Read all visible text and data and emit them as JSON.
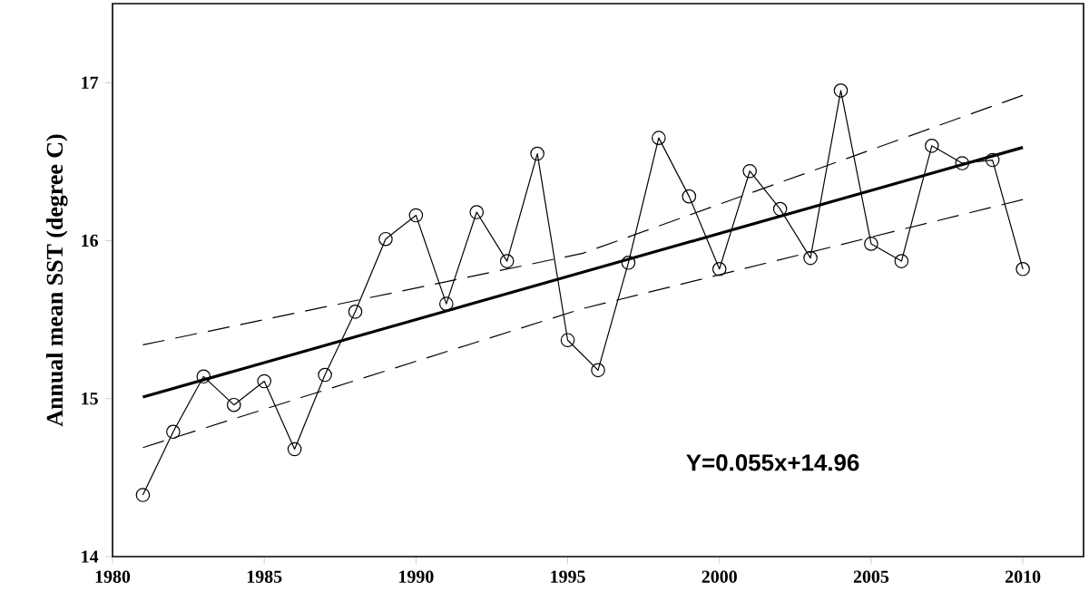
{
  "chart_data": {
    "type": "line",
    "ylabel": "Annual mean SST (degree C)",
    "xlim": [
      1980,
      2012
    ],
    "ylim": [
      14,
      17.5
    ],
    "xticks": [
      1980,
      1985,
      1990,
      1995,
      2000,
      2005,
      2010
    ],
    "yticks": [
      14,
      15,
      16,
      17
    ],
    "grid": false,
    "series": [
      {
        "color": "#000000",
        "marker": "circle",
        "line_style": "solid",
        "x": [
          1981,
          1982,
          1983,
          1984,
          1985,
          1986,
          1987,
          1988,
          1989,
          1990,
          1991,
          1992,
          1993,
          1994,
          1995,
          1996,
          1997,
          1998,
          1999,
          2000,
          2001,
          2002,
          2003,
          2004,
          2005,
          2006,
          2007,
          2008,
          2009,
          2010
        ],
        "values": [
          14.39,
          14.79,
          15.14,
          14.96,
          15.11,
          14.68,
          15.15,
          15.55,
          16.01,
          16.16,
          15.6,
          16.18,
          15.87,
          16.55,
          15.37,
          15.18,
          15.86,
          16.65,
          16.28,
          15.82,
          16.44,
          16.2,
          15.89,
          16.95,
          15.98,
          15.87,
          16.6,
          16.49,
          16.51,
          15.82
        ]
      },
      {
        "color": "#000000",
        "marker": "none",
        "line_style": "solid",
        "x": [
          1981,
          2010
        ],
        "values": [
          15.01,
          16.59
        ]
      },
      {
        "color": "#000000",
        "marker": "none",
        "line_style": "dashed",
        "x": [
          1981,
          1995.5,
          2010
        ],
        "values": [
          15.34,
          15.92,
          16.92
        ]
      },
      {
        "color": "#000000",
        "marker": "none",
        "line_style": "dashed",
        "x": [
          1981,
          1995.5,
          2010
        ],
        "values": [
          14.69,
          15.57,
          16.26
        ]
      }
    ],
    "annotations": [
      "Y=0.055x+14.96"
    ]
  }
}
